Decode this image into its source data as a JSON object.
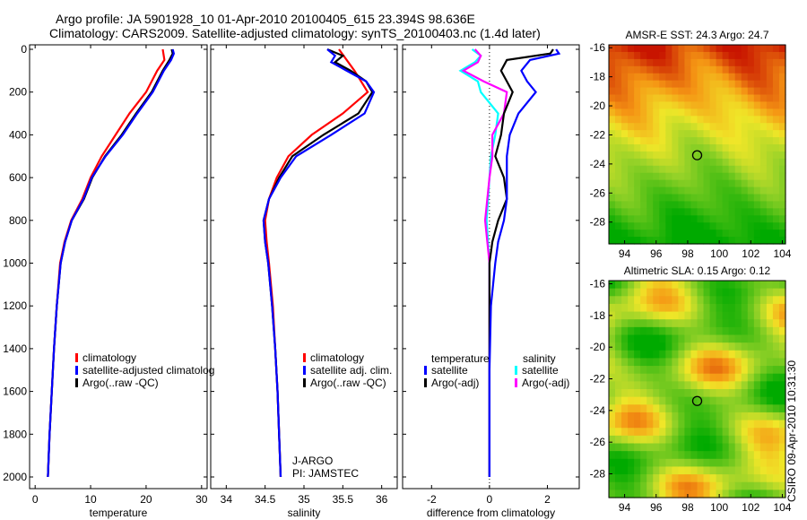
{
  "title_line1": "Argo profile: JA 5901928_10 01-Apr-2010 20100405_615 23.394S 98.636E",
  "title_line2": "Climatology: CARS2009. Satellite-adjusted climatology: synTS_20100403.nc (1.4d later)",
  "stamp": "CSIRO 09-Apr-2010 10:31:30",
  "colors": {
    "clim": "#ff0000",
    "sat": "#0000ff",
    "argo": "#000000",
    "salsat": "#00ffff",
    "salargo": "#ff00ff"
  },
  "chart_data": [
    {
      "type": "line",
      "xlabel": "temperature",
      "ylabel": "",
      "xlim": [
        -1,
        31
      ],
      "ylim": [
        2050,
        0
      ],
      "xticks": [
        0,
        10,
        20,
        30
      ],
      "yticks": [
        0,
        200,
        400,
        600,
        800,
        1000,
        1200,
        1400,
        1600,
        1800,
        2000
      ],
      "legend": [
        "climatology",
        "satellite-adjusted climatolog",
        "Argo(..raw -QC)"
      ],
      "series": [
        {
          "name": "climatology",
          "color": "#ff0000",
          "depth": [
            0,
            50,
            100,
            200,
            300,
            400,
            500,
            600,
            700,
            800,
            900,
            1000,
            1200,
            1400,
            1600,
            1800,
            2000
          ],
          "values": [
            23,
            23.3,
            22,
            20,
            17,
            14.5,
            12,
            10,
            8.5,
            6.5,
            5.3,
            4.5,
            3.9,
            3.4,
            3,
            2.6,
            2.3
          ]
        },
        {
          "name": "Argo(..raw -QC)",
          "color": "#000000",
          "depth": [
            0,
            20,
            50,
            100,
            200,
            300,
            400,
            500,
            600,
            700,
            800,
            900,
            1000,
            1200,
            1400,
            1600,
            1800,
            2000
          ],
          "values": [
            24.6,
            24.8,
            24.2,
            23,
            21,
            18.2,
            15.6,
            12.6,
            10.3,
            8.8,
            6.6,
            5.4,
            4.6,
            3.9,
            3.4,
            3,
            2.6,
            2.3
          ]
        },
        {
          "name": "satellite-adjusted climatology",
          "color": "#0000ff",
          "depth": [
            0,
            20,
            50,
            100,
            200,
            300,
            400,
            500,
            600,
            700,
            800,
            900,
            1000,
            1200,
            1400,
            1600,
            1800,
            2000
          ],
          "values": [
            24.8,
            25,
            24.5,
            23.2,
            21.2,
            18.4,
            15.8,
            12.7,
            10.2,
            8.7,
            6.6,
            5.4,
            4.6,
            3.9,
            3.4,
            3,
            2.6,
            2.3
          ]
        }
      ]
    },
    {
      "type": "line",
      "xlabel": "salinity",
      "xlim": [
        33.8,
        36.2
      ],
      "ylim": [
        2050,
        0
      ],
      "xticks": [
        34,
        34.5,
        35,
        35.5,
        36
      ],
      "legend": [
        "climatology",
        "satellite adj. clim.",
        "Argo(..raw -QC)"
      ],
      "annotation": [
        "J-ARGO",
        "PI: JAMSTEC"
      ],
      "series": [
        {
          "name": "climatology",
          "color": "#ff0000",
          "depth": [
            0,
            100,
            200,
            300,
            400,
            500,
            600,
            700,
            800,
            900,
            1000,
            1200,
            1400,
            1600,
            1800,
            2000
          ],
          "values": [
            35.45,
            35.65,
            35.82,
            35.5,
            35.1,
            34.8,
            34.65,
            34.55,
            34.5,
            34.52,
            34.55,
            34.6,
            34.63,
            34.66,
            34.68,
            34.7
          ]
        },
        {
          "name": "Argo(..raw -QC)",
          "color": "#000000",
          "depth": [
            0,
            30,
            60,
            100,
            150,
            200,
            300,
            400,
            500,
            600,
            700,
            800,
            900,
            1000,
            1200,
            1400,
            1600,
            1800,
            2000
          ],
          "values": [
            35.3,
            35.5,
            35.4,
            35.6,
            35.8,
            35.88,
            35.7,
            35.25,
            34.85,
            34.68,
            34.55,
            34.48,
            34.5,
            34.54,
            34.59,
            34.63,
            34.66,
            34.68,
            34.7
          ]
        },
        {
          "name": "satellite adj. clim.",
          "color": "#0000ff",
          "depth": [
            0,
            30,
            60,
            100,
            150,
            200,
            300,
            400,
            500,
            600,
            700,
            800,
            900,
            1000,
            1200,
            1400,
            1600,
            1800,
            2000
          ],
          "values": [
            35.3,
            35.4,
            35.35,
            35.55,
            35.8,
            35.9,
            35.78,
            35.35,
            34.9,
            34.7,
            34.55,
            34.48,
            34.5,
            34.54,
            34.59,
            34.63,
            34.66,
            34.68,
            34.7
          ]
        }
      ]
    },
    {
      "type": "line",
      "xlabel": "difference from climatology",
      "xlim": [
        -3,
        3.1
      ],
      "ylim": [
        2050,
        0
      ],
      "xticks": [
        -2,
        0,
        2
      ],
      "legend_titles": [
        "temperature",
        "salinity"
      ],
      "legend": [
        "satellite",
        "Argo(-adj)",
        "satellite",
        "Argo(-adj)"
      ],
      "series": [
        {
          "name": "salinity satellite",
          "color": "#00ffff",
          "depth": [
            0,
            30,
            60,
            100,
            150,
            200,
            300,
            400,
            500,
            600,
            800,
            1000,
            1500,
            2000
          ],
          "values": [
            -0.6,
            -0.3,
            -0.5,
            -1.0,
            -0.4,
            -0.3,
            0.3,
            0.2,
            0.05,
            0,
            -0.1,
            0,
            0,
            0
          ]
        },
        {
          "name": "salinity Argo(-adj)",
          "color": "#ff00ff",
          "depth": [
            0,
            30,
            60,
            100,
            150,
            200,
            300,
            400,
            500,
            600,
            800,
            1000,
            1500,
            2000
          ],
          "values": [
            -0.5,
            -0.3,
            -0.4,
            -0.9,
            -0.2,
            0.6,
            0.5,
            0.1,
            0.1,
            0,
            -0.15,
            0,
            0,
            0
          ]
        },
        {
          "name": "temperature Argo(-adj)",
          "color": "#000000",
          "depth": [
            0,
            20,
            50,
            100,
            150,
            200,
            300,
            400,
            500,
            600,
            700,
            800,
            900,
            1000,
            1500,
            2000
          ],
          "values": [
            2.2,
            2.1,
            0.6,
            0.4,
            0.6,
            0.8,
            0.5,
            0.4,
            0.2,
            0.5,
            0.6,
            0.3,
            0.1,
            0,
            0,
            0
          ]
        },
        {
          "name": "temperature satellite",
          "color": "#0000ff",
          "depth": [
            0,
            20,
            50,
            100,
            150,
            200,
            300,
            400,
            500,
            600,
            700,
            800,
            900,
            1000,
            1200,
            1500,
            2000
          ],
          "values": [
            2.3,
            2.4,
            1.4,
            1.1,
            1.3,
            1.6,
            1.0,
            0.7,
            0.6,
            0.6,
            0.6,
            0.5,
            0.3,
            0.2,
            0.05,
            0,
            0
          ]
        }
      ]
    },
    {
      "type": "heatmap",
      "title": "AMSR-E SST: 24.3 Argo: 24.7",
      "xlim": [
        93,
        104.2
      ],
      "ylim": [
        -29.5,
        -15.8
      ],
      "xticks": [
        94,
        96,
        98,
        100,
        102,
        104
      ],
      "yticks": [
        -16,
        -18,
        -20,
        -22,
        -24,
        -26,
        -28
      ],
      "marker": [
        98.6,
        -23.4
      ]
    },
    {
      "type": "heatmap",
      "title": "Altimetric SLA: 0.15 Argo: 0.12",
      "xlim": [
        93,
        104.2
      ],
      "ylim": [
        -29.5,
        -15.8
      ],
      "xticks": [
        94,
        96,
        98,
        100,
        102,
        104
      ],
      "yticks": [
        -16,
        -18,
        -20,
        -22,
        -24,
        -26,
        -28
      ],
      "marker": [
        98.6,
        -23.4
      ]
    }
  ]
}
